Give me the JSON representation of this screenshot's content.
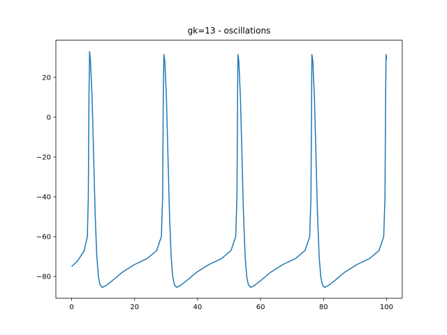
{
  "chart_data": {
    "type": "line",
    "title": "gk=13 - oscillations",
    "x": [
      0,
      2,
      4,
      5,
      5.3,
      5.5,
      5.7,
      6.0,
      6.5,
      7.0,
      7.5,
      8.0,
      8.5,
      9.0,
      9.7,
      11.0,
      13.0,
      16.0,
      20.0,
      24.0,
      27.0,
      28.5,
      28.9,
      29.1,
      29.3,
      29.6,
      30.1,
      30.6,
      31.1,
      31.6,
      32.1,
      32.6,
      33.3,
      34.6,
      36.6,
      39.6,
      43.6,
      47.6,
      50.6,
      52.1,
      52.5,
      52.7,
      52.8,
      53.1,
      53.6,
      54.1,
      54.6,
      55.1,
      55.6,
      56.1,
      56.8,
      58.1,
      60.1,
      63.1,
      67.1,
      71.1,
      74.1,
      75.6,
      76.0,
      76.2,
      76.3,
      76.6,
      77.1,
      77.6,
      78.1,
      78.6,
      79.1,
      79.6,
      80.3,
      81.6,
      83.6,
      86.6,
      90.6,
      94.6,
      97.6,
      99.1,
      99.5,
      99.7,
      99.85,
      100
    ],
    "series": [
      {
        "color": "#1f77b4",
        "values": [
          -75,
          -72,
          -67,
          -60,
          -40,
          10,
          33,
          28,
          10,
          -20,
          -50,
          -70,
          -80,
          -84,
          -85.5,
          -84.5,
          -82,
          -78,
          -74,
          -71,
          -67,
          -60,
          -40,
          10,
          31.5,
          28,
          10,
          -20,
          -50,
          -70,
          -80,
          -84,
          -85.5,
          -84.5,
          -82,
          -78,
          -74,
          -71,
          -67,
          -60,
          -40,
          10,
          31.5,
          28,
          10,
          -20,
          -50,
          -70,
          -80,
          -84,
          -85.5,
          -84.5,
          -82,
          -78,
          -74,
          -71,
          -67,
          -60,
          -40,
          10,
          31.5,
          28,
          10,
          -20,
          -50,
          -70,
          -80,
          -84,
          -85.5,
          -84.5,
          -82,
          -78,
          -74,
          -71,
          -67,
          -60,
          -40,
          10,
          31.5,
          29
        ]
      }
    ],
    "xlim": [
      -5,
      105
    ],
    "ylim": [
      -90.9,
      38.7
    ],
    "xticks": [
      0,
      20,
      40,
      60,
      80,
      100
    ],
    "yticks": [
      {
        "value": -80,
        "label": "−80"
      },
      {
        "value": -60,
        "label": "−60"
      },
      {
        "value": -40,
        "label": "−40"
      },
      {
        "value": -20,
        "label": "−20"
      },
      0,
      20
    ]
  }
}
